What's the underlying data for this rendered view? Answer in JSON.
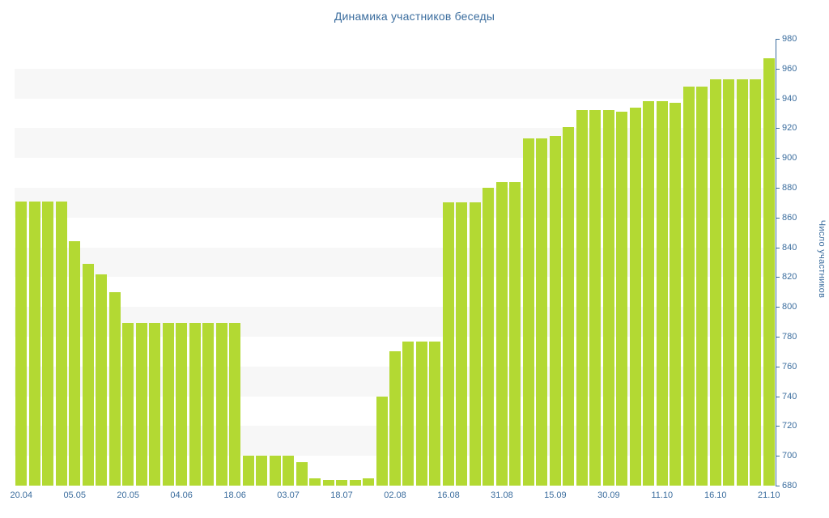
{
  "chart_data": {
    "type": "bar",
    "title": "Динамика участников беседы",
    "xlabel": "",
    "ylabel": "Число участников",
    "ylim": [
      680,
      980
    ],
    "ytick_step": 20,
    "y_tick_labels": [
      "680",
      "700",
      "720",
      "740",
      "760",
      "780",
      "800",
      "820",
      "840",
      "860",
      "880",
      "900",
      "920",
      "940",
      "960",
      "980"
    ],
    "x_tick_labels": [
      "20.04",
      "05.05",
      "20.05",
      "04.06",
      "18.06",
      "03.07",
      "18.07",
      "02.08",
      "16.08",
      "31.08",
      "15.09",
      "30.09",
      "11.10",
      "16.10",
      "21.10"
    ],
    "label_every": 4,
    "values": [
      871,
      871,
      871,
      871,
      844,
      829,
      822,
      810,
      789,
      789,
      789,
      789,
      789,
      789,
      789,
      789,
      789,
      700,
      700,
      700,
      700,
      696,
      685,
      684,
      684,
      684,
      685,
      740,
      770,
      777,
      777,
      777,
      870,
      870,
      870,
      880,
      884,
      884,
      913,
      913,
      915,
      921,
      932,
      932,
      932,
      931,
      934,
      938,
      938,
      937,
      948,
      948,
      953,
      953,
      953,
      953,
      967
    ],
    "grid": "alternating horizontal bands",
    "legend": "none",
    "y_axis_side": "right",
    "colors": {
      "bar": "#b3d933",
      "axis_text": "#3b6d9e",
      "axis_line": "#3b6d9e",
      "stripe": "#f7f7f7",
      "background": "#ffffff"
    }
  }
}
